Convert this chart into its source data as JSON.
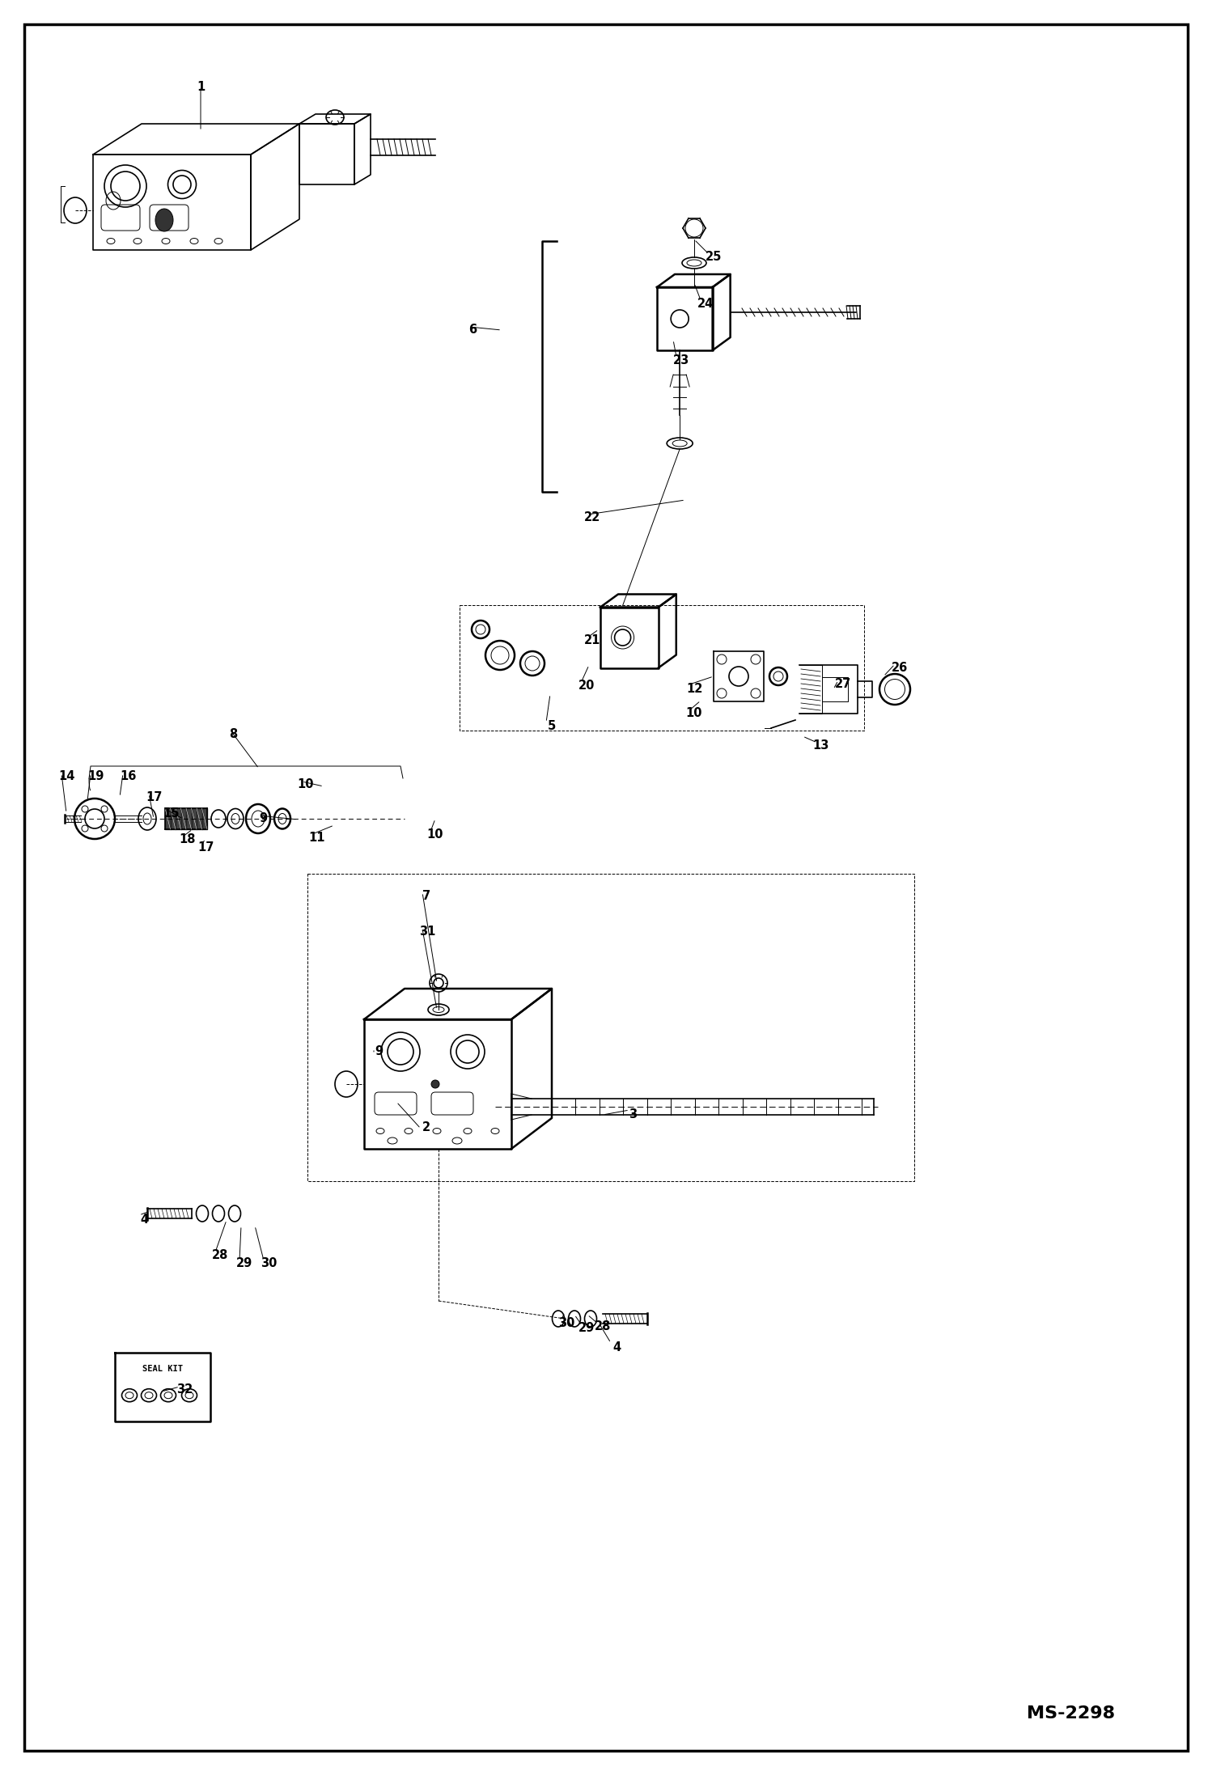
{
  "bg_color": "#ffffff",
  "border_color": "#000000",
  "line_color": "#000000",
  "figsize": [
    14.98,
    21.94
  ],
  "dpi": 100,
  "ms_label": "MS-2298",
  "scale": 1.0,
  "border": [
    30,
    30,
    1438,
    2134
  ],
  "labels": [
    [
      "1",
      248,
      107
    ],
    [
      "2",
      527,
      1393
    ],
    [
      "3",
      782,
      1378
    ],
    [
      "4",
      178,
      1508
    ],
    [
      "4",
      762,
      1665
    ],
    [
      "5",
      682,
      897
    ],
    [
      "6",
      584,
      408
    ],
    [
      "7",
      527,
      1108
    ],
    [
      "8",
      288,
      908
    ],
    [
      "9",
      325,
      1012
    ],
    [
      "9",
      468,
      1300
    ],
    [
      "10",
      378,
      970
    ],
    [
      "10",
      538,
      1032
    ],
    [
      "10",
      858,
      882
    ],
    [
      "11",
      392,
      1035
    ],
    [
      "12",
      858,
      852
    ],
    [
      "13",
      1015,
      922
    ],
    [
      "14",
      82,
      960
    ],
    [
      "15",
      212,
      1005
    ],
    [
      "16",
      158,
      960
    ],
    [
      "17",
      190,
      985
    ],
    [
      "17",
      255,
      1048
    ],
    [
      "18",
      232,
      1038
    ],
    [
      "19",
      118,
      960
    ],
    [
      "20",
      725,
      848
    ],
    [
      "21",
      732,
      792
    ],
    [
      "22",
      732,
      640
    ],
    [
      "23",
      842,
      445
    ],
    [
      "24",
      872,
      375
    ],
    [
      "25",
      882,
      318
    ],
    [
      "26",
      1112,
      825
    ],
    [
      "27",
      1042,
      845
    ],
    [
      "28",
      272,
      1552
    ],
    [
      "28",
      745,
      1640
    ],
    [
      "29",
      302,
      1562
    ],
    [
      "29",
      725,
      1642
    ],
    [
      "30",
      332,
      1562
    ],
    [
      "30",
      700,
      1635
    ],
    [
      "31",
      528,
      1152
    ],
    [
      "32",
      228,
      1718
    ]
  ]
}
